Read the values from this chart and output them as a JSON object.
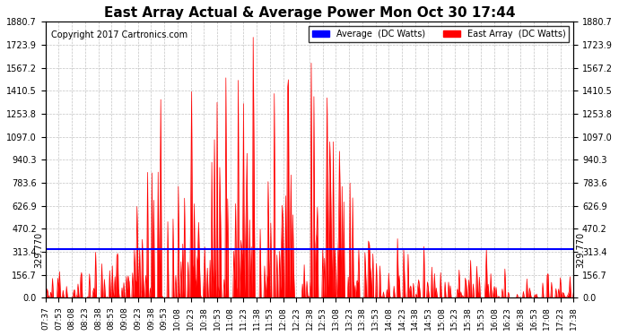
{
  "title": "East Array Actual & Average Power Mon Oct 30 17:44",
  "copyright": "Copyright 2017 Cartronics.com",
  "average_value": 329.77,
  "ymax": 1880.7,
  "ymin": 0.0,
  "yticks": [
    0.0,
    156.7,
    313.4,
    470.2,
    626.9,
    783.6,
    940.3,
    1097.0,
    1253.8,
    1410.5,
    1567.2,
    1723.9,
    1880.7
  ],
  "legend_avg_label": "Average  (DC Watts)",
  "legend_east_label": "East Array  (DC Watts)",
  "avg_color": "#0000ff",
  "east_color": "#ff0000",
  "background_color": "#ffffff",
  "grid_color": "#aaaaaa",
  "x_start": "07:37",
  "x_end": "17:38",
  "xtick_labels": [
    "07:37",
    "07:53",
    "08:08",
    "08:23",
    "08:38",
    "08:53",
    "09:08",
    "09:23",
    "09:38",
    "09:53",
    "10:08",
    "10:23",
    "10:38",
    "10:53",
    "11:08",
    "11:23",
    "11:38",
    "11:53",
    "12:08",
    "12:23",
    "12:38",
    "12:53",
    "13:08",
    "13:23",
    "13:38",
    "13:53",
    "14:08",
    "14:23",
    "14:38",
    "14:53",
    "15:08",
    "15:23",
    "15:38",
    "15:53",
    "16:08",
    "16:23",
    "16:38",
    "16:53",
    "17:08",
    "17:23",
    "17:38"
  ]
}
